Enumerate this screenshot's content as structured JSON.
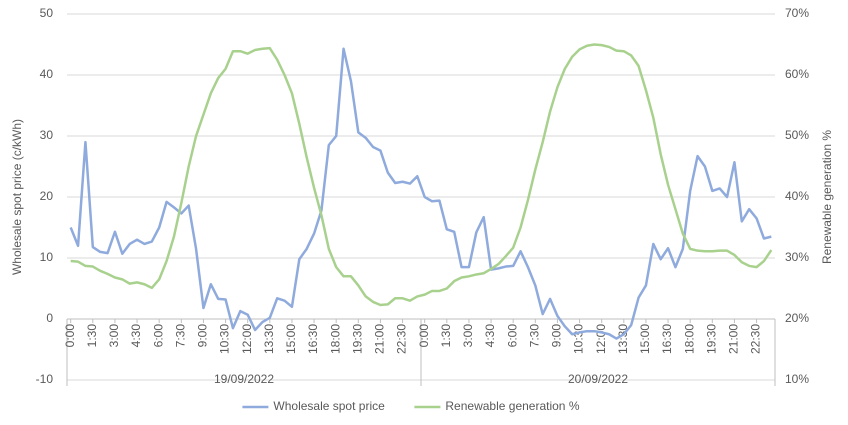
{
  "chart_data": {
    "type": "line",
    "categories": [
      "0:00",
      null,
      null,
      "1:30",
      null,
      null,
      "3:00",
      null,
      null,
      "4:30",
      null,
      null,
      "6:00",
      null,
      null,
      "7:30",
      null,
      null,
      "9:00",
      null,
      null,
      "10:30",
      null,
      null,
      "12:00",
      null,
      null,
      "13:30",
      null,
      null,
      "15:00",
      null,
      null,
      "16:30",
      null,
      null,
      "18:00",
      null,
      null,
      "19:30",
      null,
      null,
      "21:00",
      null,
      null,
      "22:30",
      null,
      null,
      "0:00",
      null,
      null,
      "1:30",
      null,
      null,
      "3:00",
      null,
      null,
      "4:30",
      null,
      null,
      "6:00",
      null,
      null,
      "7:30",
      null,
      null,
      "9:00",
      null,
      null,
      "10:30",
      null,
      null,
      "12:00",
      null,
      null,
      "13:30",
      null,
      null,
      "15:00",
      null,
      null,
      "16:30",
      null,
      null,
      "18:00",
      null,
      null,
      "19:30",
      null,
      null,
      "21:00",
      null,
      null,
      "22:30",
      null,
      null
    ],
    "groups": [
      "19/09/2022",
      "20/09/2022"
    ],
    "ylabel": "Wholesale spot price (c/kWh)",
    "y2label": "Renewable generation %",
    "ylim": [
      -10,
      50
    ],
    "yticks": [
      -10,
      0,
      10,
      20,
      30,
      40,
      50
    ],
    "y2lim": [
      10,
      70
    ],
    "y2ticks": [
      {
        "value": 10,
        "label": "10%"
      },
      {
        "value": 20,
        "label": "20%"
      },
      {
        "value": 30,
        "label": "30%"
      },
      {
        "value": 40,
        "label": "40%"
      },
      {
        "value": 50,
        "label": "50%"
      },
      {
        "value": 60,
        "label": "60%"
      },
      {
        "value": 70,
        "label": "70%"
      }
    ],
    "grid": true,
    "legend": "bottom",
    "series": [
      {
        "name": "Wholesale spot price",
        "color": "#8faadc",
        "values": [
          15,
          12,
          29,
          11.8,
          11,
          10.8,
          14.3,
          10.7,
          12.3,
          13,
          12.3,
          12.7,
          15,
          19.2,
          18.3,
          17.3,
          18.6,
          11.5,
          1.8,
          5.7,
          3.3,
          3.2,
          -1.5,
          1.3,
          0.7,
          -1.8,
          -0.5,
          0.2,
          3.4,
          3,
          2,
          9.8,
          11.5,
          14,
          17.8,
          28.5,
          30,
          44.3,
          39,
          30.6,
          29.7,
          28.2,
          27.6,
          24,
          22.3,
          22.5,
          22.2,
          23.4,
          20,
          19.3,
          19.4,
          14.7,
          14.3,
          8.5,
          8.5,
          14.2,
          16.7,
          8.1,
          8.3,
          8.6,
          8.7,
          11.1,
          8.5,
          5.5,
          0.8,
          3.3,
          0.5,
          -1.2,
          -2.5,
          -2.2,
          -2,
          -2,
          -2.2,
          -2.5,
          -3.2,
          -2.5,
          -1,
          3.5,
          5.5,
          12.3,
          9.8,
          11.6,
          8.5,
          11.5,
          21,
          26.7,
          25,
          21,
          21.4,
          20,
          25.7,
          16,
          18,
          16.5,
          13.2,
          13.5
        ]
      },
      {
        "name": "Renewable generation %",
        "color": "#a9d18e",
        "axis": "y2",
        "values": [
          29.5,
          29.4,
          28.7,
          28.6,
          27.9,
          27.4,
          26.8,
          26.5,
          25.8,
          26,
          25.7,
          25.1,
          26.5,
          29.5,
          33.5,
          39,
          45,
          50,
          53.5,
          57,
          59.5,
          61,
          63.9,
          63.9,
          63.5,
          64.1,
          64.3,
          64.4,
          62.5,
          60,
          57,
          52,
          46.5,
          41.5,
          37,
          31.5,
          28.5,
          27,
          27,
          25.5,
          23.7,
          22.8,
          22.3,
          22.4,
          23.4,
          23.4,
          23,
          23.7,
          24,
          24.6,
          24.6,
          25,
          26.2,
          26.8,
          27,
          27.3,
          27.5,
          28.2,
          29,
          30.3,
          31.7,
          35,
          39.5,
          44.5,
          49,
          54,
          58,
          61,
          63,
          64.2,
          64.8,
          65,
          64.9,
          64.6,
          64,
          63.9,
          63.2,
          61.5,
          57.5,
          53,
          47,
          42,
          38,
          34,
          31.5,
          31.2,
          31.1,
          31.1,
          31.2,
          31.2,
          30.5,
          29.3,
          28.7,
          28.5,
          29.5,
          31.3
        ]
      }
    ]
  }
}
